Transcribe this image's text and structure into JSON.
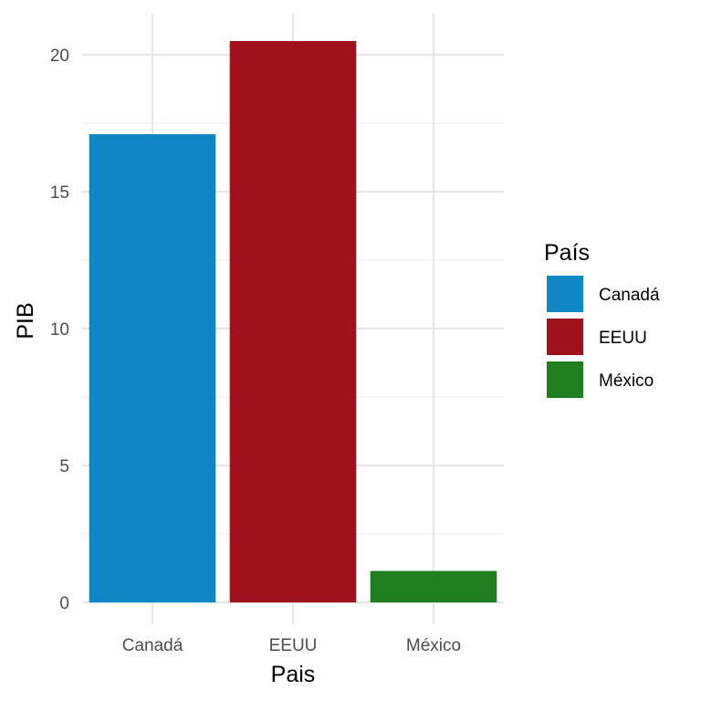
{
  "chart_data": {
    "type": "bar",
    "categories": [
      "Canadá",
      "EEUU",
      "México"
    ],
    "values": [
      17.1,
      20.5,
      1.15
    ],
    "colors": [
      "#0E87C4",
      "#A0121B",
      "#1F7E1D"
    ],
    "xlabel": "Pais",
    "ylabel": "PIB",
    "ylim": [
      -0.8,
      21.5
    ],
    "yticks": [
      0,
      5,
      10,
      15,
      20
    ],
    "grid": true,
    "legend": {
      "title": "País",
      "placement": "right",
      "entries": [
        "Canadá",
        "EEUU",
        "México"
      ]
    }
  }
}
